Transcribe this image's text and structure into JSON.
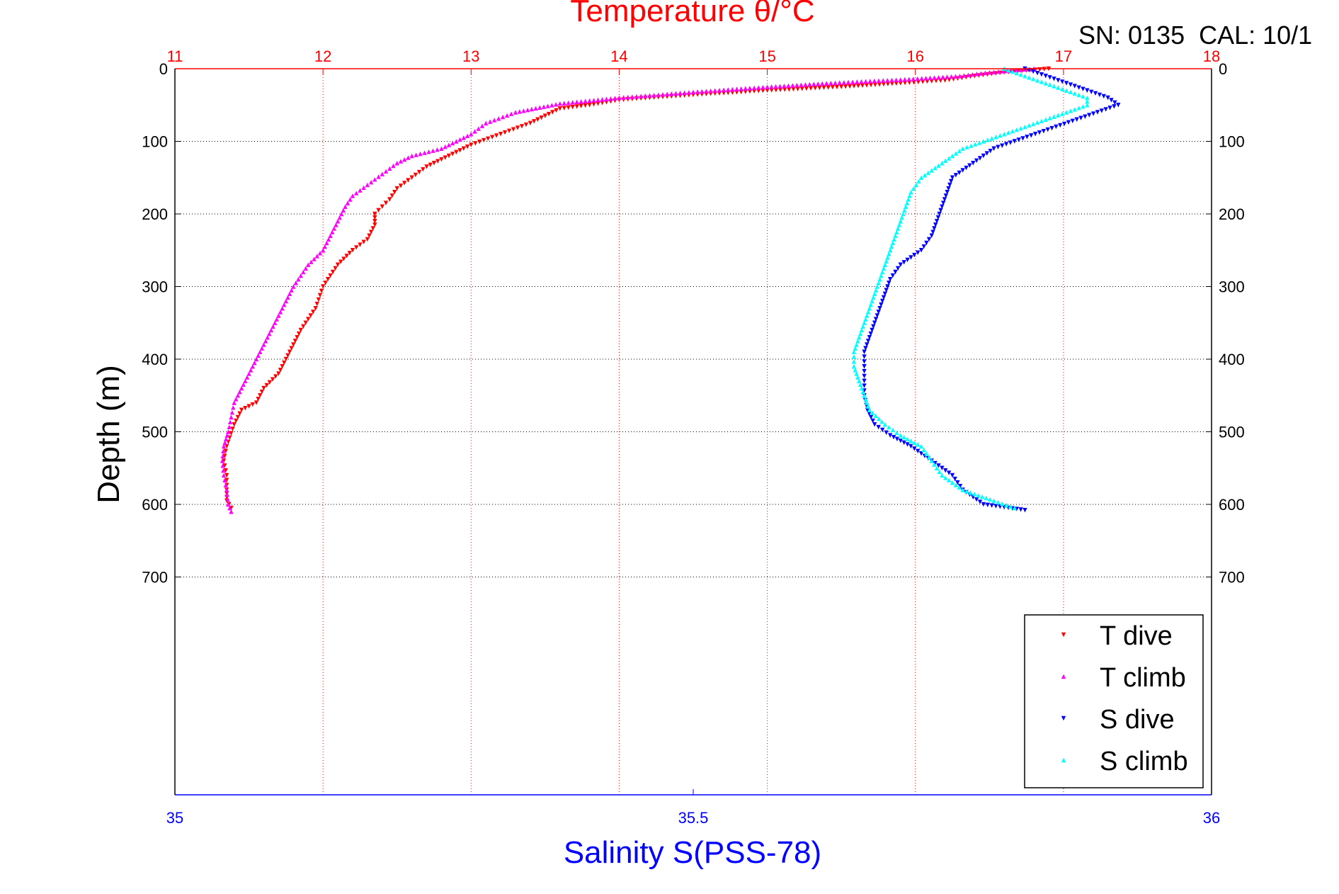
{
  "chart_data": {
    "type": "scatter",
    "title": "Temperature θ/°C",
    "annotation": "SN: 0135  CAL: 10/1",
    "ylabel": "Depth (m)",
    "xlabel_bottom": "Salinity S(PSS-78)",
    "y_axis": {
      "range": [
        0,
        1000
      ],
      "reversed": true,
      "ticks": [
        0,
        100,
        200,
        300,
        400,
        500,
        600,
        700
      ],
      "tick_labels": [
        "0",
        "100",
        "200",
        "300",
        "400",
        "500",
        "600",
        "700"
      ]
    },
    "temperature_axis": {
      "position": "top",
      "range": [
        11,
        18
      ],
      "ticks": [
        11,
        12,
        13,
        14,
        15,
        16,
        17,
        18
      ],
      "tick_labels": [
        "11",
        "12",
        "13",
        "14",
        "15",
        "16",
        "17",
        "18"
      ],
      "color": "#ff0000"
    },
    "salinity_axis": {
      "position": "bottom",
      "range": [
        35,
        36
      ],
      "ticks": [
        35,
        35.5,
        36
      ],
      "tick_labels": [
        "35",
        "35.5",
        "36"
      ],
      "color": "#0000ff"
    },
    "grid": true,
    "legend_position": "bottom-right",
    "series": [
      {
        "name": "T dive",
        "axis": "temperature",
        "color": "#ff0000",
        "points": [
          [
            16.9,
            0
          ],
          [
            16.6,
            5
          ],
          [
            16.4,
            10
          ],
          [
            16.2,
            16
          ],
          [
            15.9,
            20
          ],
          [
            15.5,
            25
          ],
          [
            15.0,
            30
          ],
          [
            14.5,
            36
          ],
          [
            14.0,
            43
          ],
          [
            13.8,
            50
          ],
          [
            13.6,
            55
          ],
          [
            13.5,
            65
          ],
          [
            13.4,
            75
          ],
          [
            13.2,
            90
          ],
          [
            13.0,
            105
          ],
          [
            12.9,
            115
          ],
          [
            12.8,
            125
          ],
          [
            12.7,
            135
          ],
          [
            12.6,
            150
          ],
          [
            12.5,
            165
          ],
          [
            12.45,
            180
          ],
          [
            12.4,
            190
          ],
          [
            12.35,
            200
          ],
          [
            12.35,
            215
          ],
          [
            12.3,
            235
          ],
          [
            12.2,
            250
          ],
          [
            12.1,
            270
          ],
          [
            12.05,
            285
          ],
          [
            12.0,
            300
          ],
          [
            11.95,
            330
          ],
          [
            11.9,
            345
          ],
          [
            11.85,
            360
          ],
          [
            11.8,
            380
          ],
          [
            11.75,
            400
          ],
          [
            11.7,
            420
          ],
          [
            11.6,
            440
          ],
          [
            11.55,
            460
          ],
          [
            11.45,
            470
          ],
          [
            11.4,
            490
          ],
          [
            11.35,
            520
          ],
          [
            11.33,
            540
          ],
          [
            11.35,
            560
          ],
          [
            11.35,
            580
          ],
          [
            11.35,
            595
          ],
          [
            11.38,
            605
          ]
        ]
      },
      {
        "name": "T climb",
        "axis": "temperature",
        "color": "#ff00ff",
        "points": [
          [
            16.8,
            0
          ],
          [
            16.5,
            5
          ],
          [
            16.3,
            10
          ],
          [
            15.9,
            15
          ],
          [
            15.4,
            20
          ],
          [
            15.0,
            25
          ],
          [
            14.5,
            32
          ],
          [
            14.0,
            40
          ],
          [
            13.6,
            48
          ],
          [
            13.3,
            60
          ],
          [
            13.1,
            75
          ],
          [
            13.0,
            90
          ],
          [
            12.9,
            100
          ],
          [
            12.8,
            110
          ],
          [
            12.6,
            120
          ],
          [
            12.5,
            130
          ],
          [
            12.4,
            145
          ],
          [
            12.3,
            160
          ],
          [
            12.2,
            175
          ],
          [
            12.15,
            190
          ],
          [
            12.1,
            210
          ],
          [
            12.05,
            230
          ],
          [
            12.0,
            250
          ],
          [
            11.9,
            270
          ],
          [
            11.85,
            285
          ],
          [
            11.8,
            300
          ],
          [
            11.75,
            320
          ],
          [
            11.7,
            340
          ],
          [
            11.65,
            360
          ],
          [
            11.6,
            380
          ],
          [
            11.55,
            400
          ],
          [
            11.5,
            420
          ],
          [
            11.45,
            440
          ],
          [
            11.4,
            460
          ],
          [
            11.38,
            480
          ],
          [
            11.36,
            500
          ],
          [
            11.33,
            520
          ],
          [
            11.32,
            540
          ],
          [
            11.33,
            560
          ],
          [
            11.35,
            580
          ],
          [
            11.36,
            600
          ],
          [
            11.38,
            610
          ]
        ]
      },
      {
        "name": "S dive",
        "axis": "salinity",
        "color": "#0000ff",
        "points": [
          [
            35.82,
            0
          ],
          [
            35.84,
            10
          ],
          [
            35.86,
            20
          ],
          [
            35.88,
            30
          ],
          [
            35.9,
            40
          ],
          [
            35.91,
            50
          ],
          [
            35.89,
            60
          ],
          [
            35.87,
            70
          ],
          [
            35.85,
            80
          ],
          [
            35.83,
            90
          ],
          [
            35.81,
            100
          ],
          [
            35.79,
            110
          ],
          [
            35.78,
            120
          ],
          [
            35.77,
            130
          ],
          [
            35.76,
            140
          ],
          [
            35.75,
            150
          ],
          [
            35.745,
            170
          ],
          [
            35.74,
            190
          ],
          [
            35.735,
            210
          ],
          [
            35.73,
            230
          ],
          [
            35.72,
            250
          ],
          [
            35.7,
            270
          ],
          [
            35.69,
            290
          ],
          [
            35.685,
            310
          ],
          [
            35.68,
            330
          ],
          [
            35.675,
            350
          ],
          [
            35.67,
            370
          ],
          [
            35.665,
            390
          ],
          [
            35.665,
            410
          ],
          [
            35.665,
            430
          ],
          [
            35.665,
            450
          ],
          [
            35.668,
            470
          ],
          [
            35.675,
            490
          ],
          [
            35.69,
            505
          ],
          [
            35.71,
            520
          ],
          [
            35.73,
            540
          ],
          [
            35.75,
            560
          ],
          [
            35.76,
            580
          ],
          [
            35.78,
            600
          ],
          [
            35.82,
            608
          ]
        ]
      },
      {
        "name": "S climb",
        "axis": "salinity",
        "color": "#00ffff",
        "points": [
          [
            35.8,
            0
          ],
          [
            35.82,
            10
          ],
          [
            35.84,
            20
          ],
          [
            35.86,
            30
          ],
          [
            35.88,
            40
          ],
          [
            35.88,
            50
          ],
          [
            35.86,
            60
          ],
          [
            35.84,
            70
          ],
          [
            35.82,
            80
          ],
          [
            35.8,
            90
          ],
          [
            35.78,
            100
          ],
          [
            35.76,
            110
          ],
          [
            35.75,
            120
          ],
          [
            35.74,
            130
          ],
          [
            35.73,
            140
          ],
          [
            35.72,
            150
          ],
          [
            35.71,
            170
          ],
          [
            35.705,
            190
          ],
          [
            35.7,
            210
          ],
          [
            35.695,
            230
          ],
          [
            35.69,
            250
          ],
          [
            35.685,
            270
          ],
          [
            35.68,
            290
          ],
          [
            35.675,
            310
          ],
          [
            35.67,
            330
          ],
          [
            35.665,
            350
          ],
          [
            35.66,
            370
          ],
          [
            35.655,
            390
          ],
          [
            35.655,
            410
          ],
          [
            35.66,
            430
          ],
          [
            35.665,
            450
          ],
          [
            35.67,
            470
          ],
          [
            35.685,
            490
          ],
          [
            35.7,
            505
          ],
          [
            35.72,
            520
          ],
          [
            35.73,
            540
          ],
          [
            35.74,
            560
          ],
          [
            35.76,
            580
          ],
          [
            35.79,
            595
          ],
          [
            35.81,
            605
          ]
        ]
      }
    ]
  }
}
